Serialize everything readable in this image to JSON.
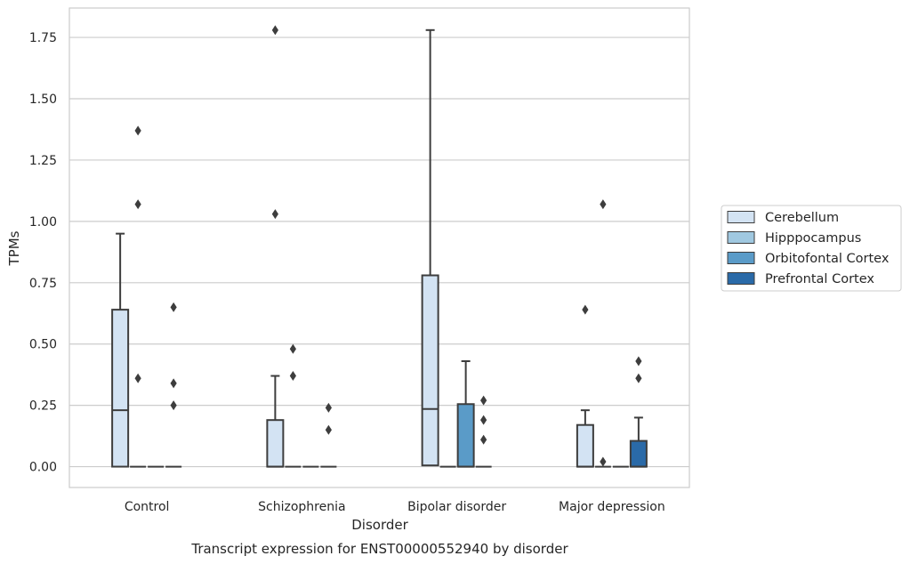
{
  "chart_data": {
    "type": "box",
    "title": "",
    "caption": "Transcript expression for ENST00000552940 by disorder",
    "xlabel": "Disorder",
    "ylabel": "TPMs",
    "ylim": [
      -0.085,
      1.87
    ],
    "yticks": [
      0.0,
      0.25,
      0.5,
      0.75,
      1.0,
      1.25,
      1.5,
      1.75
    ],
    "ytick_labels": [
      "0.00",
      "0.25",
      "0.50",
      "0.75",
      "1.00",
      "1.25",
      "1.50",
      "1.75"
    ],
    "grid": "horizontal",
    "legend_position": "right",
    "categories": [
      "Control",
      "Schizophrenia",
      "Bipolar disorder",
      "Major depression"
    ],
    "series": [
      {
        "name": "Cerebellum",
        "color": "#d3e3f3",
        "boxes": [
          {
            "q1": 0.0,
            "median": 0.23,
            "q3": 0.64,
            "whisker_low": 0.0,
            "whisker_high": 0.95,
            "outliers": []
          },
          {
            "q1": 0.0,
            "median": 0.0,
            "q3": 0.19,
            "whisker_low": 0.0,
            "whisker_high": 0.37,
            "outliers": [
              1.03,
              1.78
            ]
          },
          {
            "q1": 0.005,
            "median": 0.235,
            "q3": 0.78,
            "whisker_low": 0.005,
            "whisker_high": 1.78,
            "outliers": []
          },
          {
            "q1": 0.0,
            "median": 0.0,
            "q3": 0.17,
            "whisker_low": 0.0,
            "whisker_high": 0.23,
            "outliers": [
              0.64
            ]
          }
        ]
      },
      {
        "name": "Hipppocampus",
        "color": "#a0c8e0",
        "boxes": [
          {
            "q1": 0.0,
            "median": 0.0,
            "q3": 0.0,
            "whisker_low": 0.0,
            "whisker_high": 0.0,
            "outliers": [
              0.36,
              1.07,
              1.37
            ]
          },
          {
            "q1": 0.0,
            "median": 0.0,
            "q3": 0.0,
            "whisker_low": 0.0,
            "whisker_high": 0.0,
            "outliers": [
              0.37,
              0.48
            ]
          },
          {
            "q1": 0.0,
            "median": 0.0,
            "q3": 0.0,
            "whisker_low": 0.0,
            "whisker_high": 0.0,
            "outliers": []
          },
          {
            "q1": 0.0,
            "median": 0.0,
            "q3": 0.0,
            "whisker_low": 0.0,
            "whisker_high": 0.0,
            "outliers": [
              0.02,
              1.07
            ]
          }
        ]
      },
      {
        "name": "Orbitofontal Cortex",
        "color": "#5a9bc8",
        "boxes": [
          {
            "q1": 0.0,
            "median": 0.0,
            "q3": 0.0,
            "whisker_low": 0.0,
            "whisker_high": 0.0,
            "outliers": []
          },
          {
            "q1": 0.0,
            "median": 0.0,
            "q3": 0.0,
            "whisker_low": 0.0,
            "whisker_high": 0.0,
            "outliers": []
          },
          {
            "q1": 0.0,
            "median": 0.0,
            "q3": 0.255,
            "whisker_low": 0.0,
            "whisker_high": 0.43,
            "outliers": []
          },
          {
            "q1": 0.0,
            "median": 0.0,
            "q3": 0.0,
            "whisker_low": 0.0,
            "whisker_high": 0.0,
            "outliers": []
          }
        ]
      },
      {
        "name": "Prefrontal Cortex",
        "color": "#2a6aa8",
        "boxes": [
          {
            "q1": 0.0,
            "median": 0.0,
            "q3": 0.0,
            "whisker_low": 0.0,
            "whisker_high": 0.0,
            "outliers": [
              0.25,
              0.34,
              0.65
            ]
          },
          {
            "q1": 0.0,
            "median": 0.0,
            "q3": 0.0,
            "whisker_low": 0.0,
            "whisker_high": 0.0,
            "outliers": [
              0.15,
              0.24
            ]
          },
          {
            "q1": 0.0,
            "median": 0.0,
            "q3": 0.0,
            "whisker_low": 0.0,
            "whisker_high": 0.0,
            "outliers": [
              0.11,
              0.19,
              0.27
            ]
          },
          {
            "q1": 0.0,
            "median": 0.0,
            "q3": 0.105,
            "whisker_low": 0.0,
            "whisker_high": 0.2,
            "outliers": [
              0.36,
              0.43
            ]
          }
        ]
      }
    ],
    "colors": {
      "grid": "#cccccc",
      "frame": "#cccccc",
      "line": "#3d3d3d",
      "flier": "#3d3d3d",
      "legend_border": "#cccccc"
    }
  }
}
